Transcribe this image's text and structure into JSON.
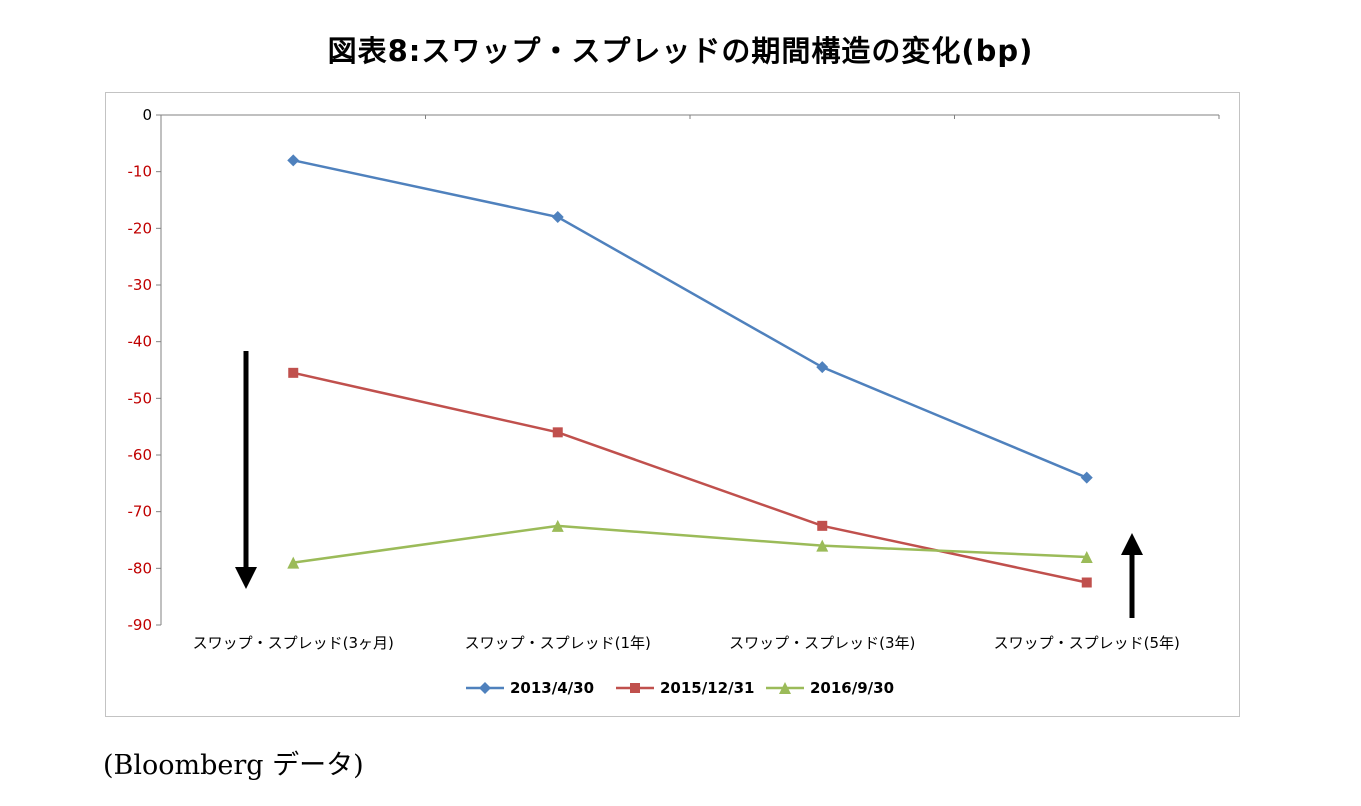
{
  "title": "図表8:スワップ・スプレッドの期間構造の変化(bp)",
  "caption": "(Bloomberg データ)",
  "chart_data": {
    "type": "line",
    "title": "図表8:スワップ・スプレッドの期間構造の変化(bp)",
    "categories": [
      "スワップ・スプレッド(3ヶ月)",
      "スワップ・スプレッド(1年)",
      "スワップ・スプレッド(3年)",
      "スワップ・スプレッド(5年)"
    ],
    "series": [
      {
        "name": "2013/4/30",
        "color": "#4F81BD",
        "marker": "diamond",
        "values": [
          -8,
          -18,
          -44.5,
          -64
        ]
      },
      {
        "name": "2015/12/31",
        "color": "#C0504D",
        "marker": "square",
        "values": [
          -45.5,
          -56,
          -72.5,
          -82.5
        ]
      },
      {
        "name": "2016/9/30",
        "color": "#9BBB59",
        "marker": "triangle",
        "values": [
          -79,
          -72.5,
          -76,
          -78
        ]
      }
    ],
    "ylim": [
      -90,
      0
    ],
    "yticks": [
      0,
      -10,
      -20,
      -30,
      -40,
      -50,
      -60,
      -70,
      -80,
      -90
    ],
    "xlabel": "",
    "ylabel": "",
    "grid": false,
    "legend_position": "bottom",
    "annotations": [
      {
        "type": "arrow",
        "direction": "down",
        "position": "left"
      },
      {
        "type": "arrow",
        "direction": "up",
        "position": "right"
      }
    ],
    "colors": {
      "negative_tick": "#C00000",
      "zero_tick": "#000000",
      "axis": "#808080",
      "category_text": "#000000",
      "legend_text": "#000000",
      "annotation": "#000000"
    }
  }
}
